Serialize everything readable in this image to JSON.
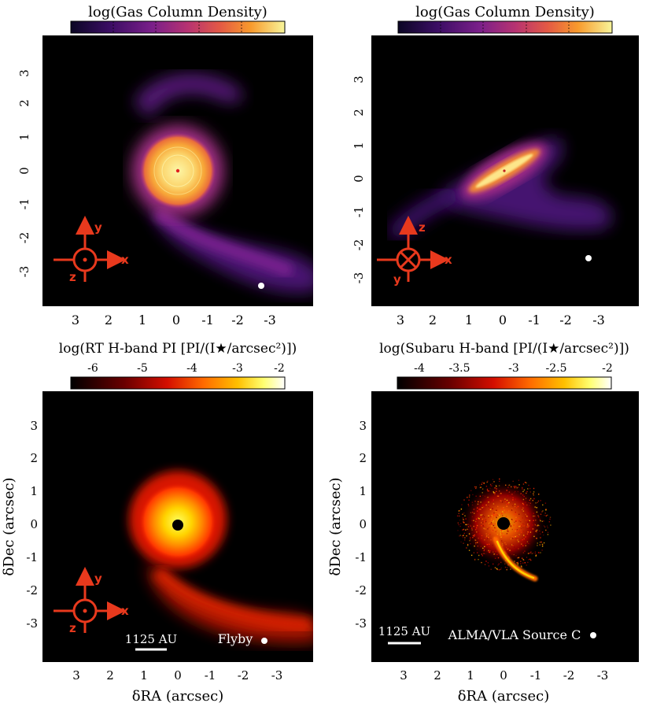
{
  "colors": {
    "gas_cmap": [
      "#0b0624",
      "#3a0d63",
      "#6b1d8b",
      "#a22c7e",
      "#d4495c",
      "#f37a2a",
      "#fbb53a",
      "#f8f59a"
    ],
    "pi_cmap": [
      "#000000",
      "#4a0000",
      "#9b0000",
      "#e01b00",
      "#ff5a00",
      "#ff9a00",
      "#ffd700",
      "#ffff80",
      "#ffffff"
    ],
    "axis_glyph": "#e8391d",
    "marker": "#ffffff"
  },
  "panels": {
    "tl": {
      "colorbar_title": "log(Gas Column Density)",
      "yticks": [
        "3",
        "2",
        "1",
        "0",
        "-1",
        "-2",
        "-3"
      ],
      "xticks": [
        "3",
        "2",
        "1",
        "0",
        "-1",
        "-2",
        "-3"
      ],
      "glyph": {
        "up": "y",
        "right": "x",
        "down": "z",
        "center": "dot"
      }
    },
    "tr": {
      "colorbar_title": "log(Gas Column Density)",
      "yticks": [
        "3",
        "2",
        "1",
        "0",
        "-1",
        "-2",
        "-3"
      ],
      "xticks": [
        "3",
        "2",
        "1",
        "0",
        "-1",
        "-2",
        "-3"
      ],
      "glyph": {
        "up": "z",
        "right": "x",
        "down": "y",
        "center": "cross"
      }
    },
    "bl": {
      "colorbar_title": "log(RT H-band PI [PI/(I★/arcsec²)])",
      "colorbar_ticks": [
        "-6",
        "-5",
        "-4",
        "-3",
        "-2"
      ],
      "yticks": [
        "3",
        "2",
        "1",
        "0",
        "-1",
        "-2",
        "-3"
      ],
      "xticks": [
        "3",
        "2",
        "1",
        "0",
        "-1",
        "-2",
        "-3"
      ],
      "xlabel": "δRA (arcsec)",
      "ylabel": "δDec (arcsec)",
      "scalebar": "1125 AU",
      "marker_label": "Flyby",
      "glyph": {
        "up": "y",
        "right": "x",
        "down": "z",
        "center": "dot"
      }
    },
    "br": {
      "colorbar_title": "log(Subaru H-band [PI/(I★/arcsec²)])",
      "colorbar_ticks": [
        "-4",
        "-3.5",
        "-3",
        "-2.5",
        "-2"
      ],
      "yticks": [
        "3",
        "2",
        "1",
        "0",
        "-1",
        "-2",
        "-3"
      ],
      "xticks": [
        "3",
        "2",
        "1",
        "0",
        "-1",
        "-2",
        "-3"
      ],
      "xlabel": "δRA (arcsec)",
      "ylabel": "δDec (arcsec)",
      "scalebar": "1125 AU",
      "marker_label": "ALMA/VLA Source C"
    }
  }
}
